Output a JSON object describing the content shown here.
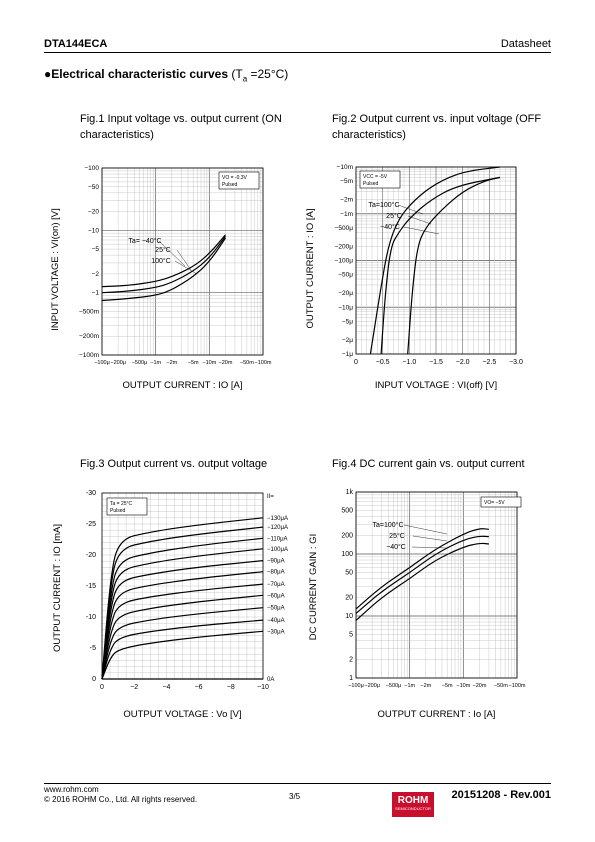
{
  "header": {
    "part": "DTA144ECA",
    "doc_type": "Datasheet"
  },
  "section": {
    "bullet": "●",
    "title": "Electrical characteristic curves",
    "cond_pre": " (T",
    "cond_sub": "a",
    "cond_post": " =25°C)"
  },
  "figures": [
    {
      "caption": "Fig.1 Input voltage vs. output current (ON characteristics)"
    },
    {
      "caption": "Fig.2 Output current vs. input voltage (OFF characteristics)"
    },
    {
      "caption": "Fig.3 Output current vs. output voltage"
    },
    {
      "caption": "Fig.4 DC current gain vs. output current"
    }
  ],
  "footer": {
    "site": "www.rohm.com",
    "copyright": "© 2016 ROHM Co., Ltd. All rights reserved.",
    "page": "3/5",
    "revision": "20151208 - Rev.001",
    "logo": "ROHM",
    "logo_sub": "SEMICONDUCTOR"
  },
  "chart_data": [
    {
      "type": "line",
      "title": "Fig.1 Input voltage vs. output current (ON characteristics)",
      "xlabel": "OUTPUT CURRENT : IO [A]",
      "ylabel": "INPUT VOLTAGE : VI(on) [V]",
      "xscale": "log",
      "yscale": "log",
      "xlim": [
        -0.0001,
        -0.1
      ],
      "ylim": [
        -0.1,
        -100
      ],
      "x_ticks": [
        "−100μ",
        "−200μ",
        "−500μ",
        "−1m",
        "−2m",
        "−5m",
        "−10m",
        "−20m",
        "−50m",
        "−100m"
      ],
      "y_ticks": [
        "−100m",
        "−200m",
        "−500m",
        "−1",
        "−2",
        "−5",
        "−10",
        "−20",
        "−50",
        "−100"
      ],
      "legend_box": [
        "VO = -0.3V",
        "Pulsed"
      ],
      "legend_position": "top-right",
      "series_labels": [
        "Ta= −40°C",
        "25°C",
        "100°C"
      ],
      "series": [
        {
          "x": [
            -0.0001,
            -0.0003,
            -0.001,
            -0.002,
            -0.005,
            -0.01,
            -0.02
          ],
          "values": [
            -1.25,
            -1.3,
            -1.5,
            -1.8,
            -2.6,
            -4.2,
            -8.5
          ]
        },
        {
          "x": [
            -0.0001,
            -0.0003,
            -0.001,
            -0.002,
            -0.005,
            -0.01,
            -0.02
          ],
          "values": [
            -1.0,
            -1.05,
            -1.2,
            -1.45,
            -2.2,
            -3.6,
            -8.0
          ]
        },
        {
          "x": [
            -0.0001,
            -0.0003,
            -0.001,
            -0.002,
            -0.005,
            -0.01,
            -0.02
          ],
          "values": [
            -0.75,
            -0.8,
            -0.9,
            -1.1,
            -1.8,
            -3.1,
            -7.5
          ]
        }
      ]
    },
    {
      "type": "line",
      "title": "Fig.2 Output current vs. input voltage (OFF characteristics)",
      "xlabel": "INPUT VOLTAGE : VI(off) [V]",
      "ylabel": "OUTPUT CURRENT : IO [A]",
      "yscale": "log",
      "xlim": [
        0,
        -3.0
      ],
      "ylim": [
        -1e-06,
        -0.01
      ],
      "x_ticks": [
        "0",
        "−0.5",
        "−1.0",
        "−1.5",
        "−2.0",
        "−2.5",
        "−3.0"
      ],
      "y_ticks": [
        "−1μ",
        "−2μ",
        "−5μ",
        "−10μ",
        "−20μ",
        "−50μ",
        "−100μ",
        "−200μ",
        "−500μ",
        "−1m",
        "−2m",
        "−5m",
        "−10m"
      ],
      "legend_box": [
        "VCC = -5V",
        "Pulsed"
      ],
      "legend_position": "top-left",
      "series_labels": [
        "Ta=100°C",
        "25°C",
        "−40°C"
      ],
      "series": [
        {
          "x": [
            -0.27,
            -0.45,
            -0.6,
            -0.8,
            -1.1,
            -1.5,
            -2.0,
            -2.7
          ],
          "values": [
            -1e-06,
            -2e-05,
            -0.0002,
            -0.0008,
            -0.002,
            -0.0045,
            -0.008,
            -0.01
          ]
        },
        {
          "x": [
            -0.47,
            -0.55,
            -0.65,
            -0.8,
            -1.0,
            -1.4,
            -1.9,
            -2.7
          ],
          "values": [
            -1e-06,
            -2e-05,
            -0.0002,
            -0.0004,
            -0.0008,
            -0.002,
            -0.004,
            -0.006
          ]
        },
        {
          "x": [
            -0.97,
            -1.05,
            -1.15,
            -1.3,
            -1.6,
            -2.0,
            -2.4,
            -2.7
          ],
          "values": [
            -1e-06,
            -2e-05,
            -0.0002,
            -0.0005,
            -0.0012,
            -0.003,
            -0.005,
            -0.006
          ]
        }
      ]
    },
    {
      "type": "line",
      "title": "Fig.3 Output current vs. output voltage",
      "xlabel": "OUTPUT VOLTAGE : Vo [V]",
      "ylabel": "OUTPUT CURRENT : IO [mA]",
      "xlim": [
        0,
        -10
      ],
      "ylim": [
        0,
        -30
      ],
      "x_ticks": [
        "0",
        "−2",
        "−4",
        "−6",
        "−8",
        "−10"
      ],
      "y_ticks": [
        "0",
        "-5",
        "-10",
        "-15",
        "-20",
        "-25",
        "-30"
      ],
      "legend_box": [
        "Ta = 25°C",
        "Pulsed"
      ],
      "legend_position": "top-left",
      "param_label": "II=",
      "series_labels": [
        "−130μA",
        "−120μA",
        "−110μA",
        "−100μA",
        "−90μA",
        "−80μA",
        "−70μA",
        "−60μA",
        "−50μA",
        "−40μA",
        "−30μA",
        "0A"
      ],
      "saturation_values": [
        -22.5,
        -21.0,
        -19.1,
        -17.5,
        -15.8,
        -14.0,
        -12.2,
        -10.3,
        -8.5,
        -6.7,
        -4.8,
        0
      ],
      "end_values": [
        -26.0,
        -24.5,
        -22.7,
        -21.0,
        -19.1,
        -17.3,
        -15.3,
        -13.5,
        -11.5,
        -9.5,
        -7.7,
        0
      ]
    },
    {
      "type": "line",
      "title": "Fig.4 DC current gain vs. output current",
      "xlabel": "OUTPUT CURRENT : Io [A]",
      "ylabel": "DC CURRENT GAIN : GI",
      "xscale": "log",
      "yscale": "log",
      "xlim": [
        -0.0001,
        -0.1
      ],
      "ylim": [
        1,
        1000
      ],
      "x_ticks": [
        "−100μ",
        "−200μ",
        "−500μ",
        "−1m",
        "−2m",
        "−5m",
        "−10m",
        "−20m",
        "−50m",
        "−100m"
      ],
      "y_ticks": [
        "1",
        "2",
        "5",
        "10",
        "20",
        "50",
        "100",
        "200",
        "500",
        "1k"
      ],
      "legend_box": [
        "VO= −5V"
      ],
      "legend_position": "top-right",
      "series_labels": [
        "Ta=100°C",
        "25°C",
        "−40°C"
      ],
      "series": [
        {
          "x": [
            -0.0001,
            -0.0003,
            -0.001,
            -0.003,
            -0.01,
            -0.02,
            -0.03
          ],
          "values": [
            13,
            30,
            60,
            120,
            210,
            260,
            250
          ]
        },
        {
          "x": [
            -0.0001,
            -0.0003,
            -0.001,
            -0.003,
            -0.01,
            -0.02,
            -0.03
          ],
          "values": [
            11,
            25,
            50,
            100,
            170,
            195,
            190
          ]
        },
        {
          "x": [
            -0.0001,
            -0.0003,
            -0.001,
            -0.003,
            -0.01,
            -0.02,
            -0.03
          ],
          "values": [
            8.5,
            20,
            40,
            80,
            130,
            150,
            145
          ]
        }
      ]
    }
  ]
}
